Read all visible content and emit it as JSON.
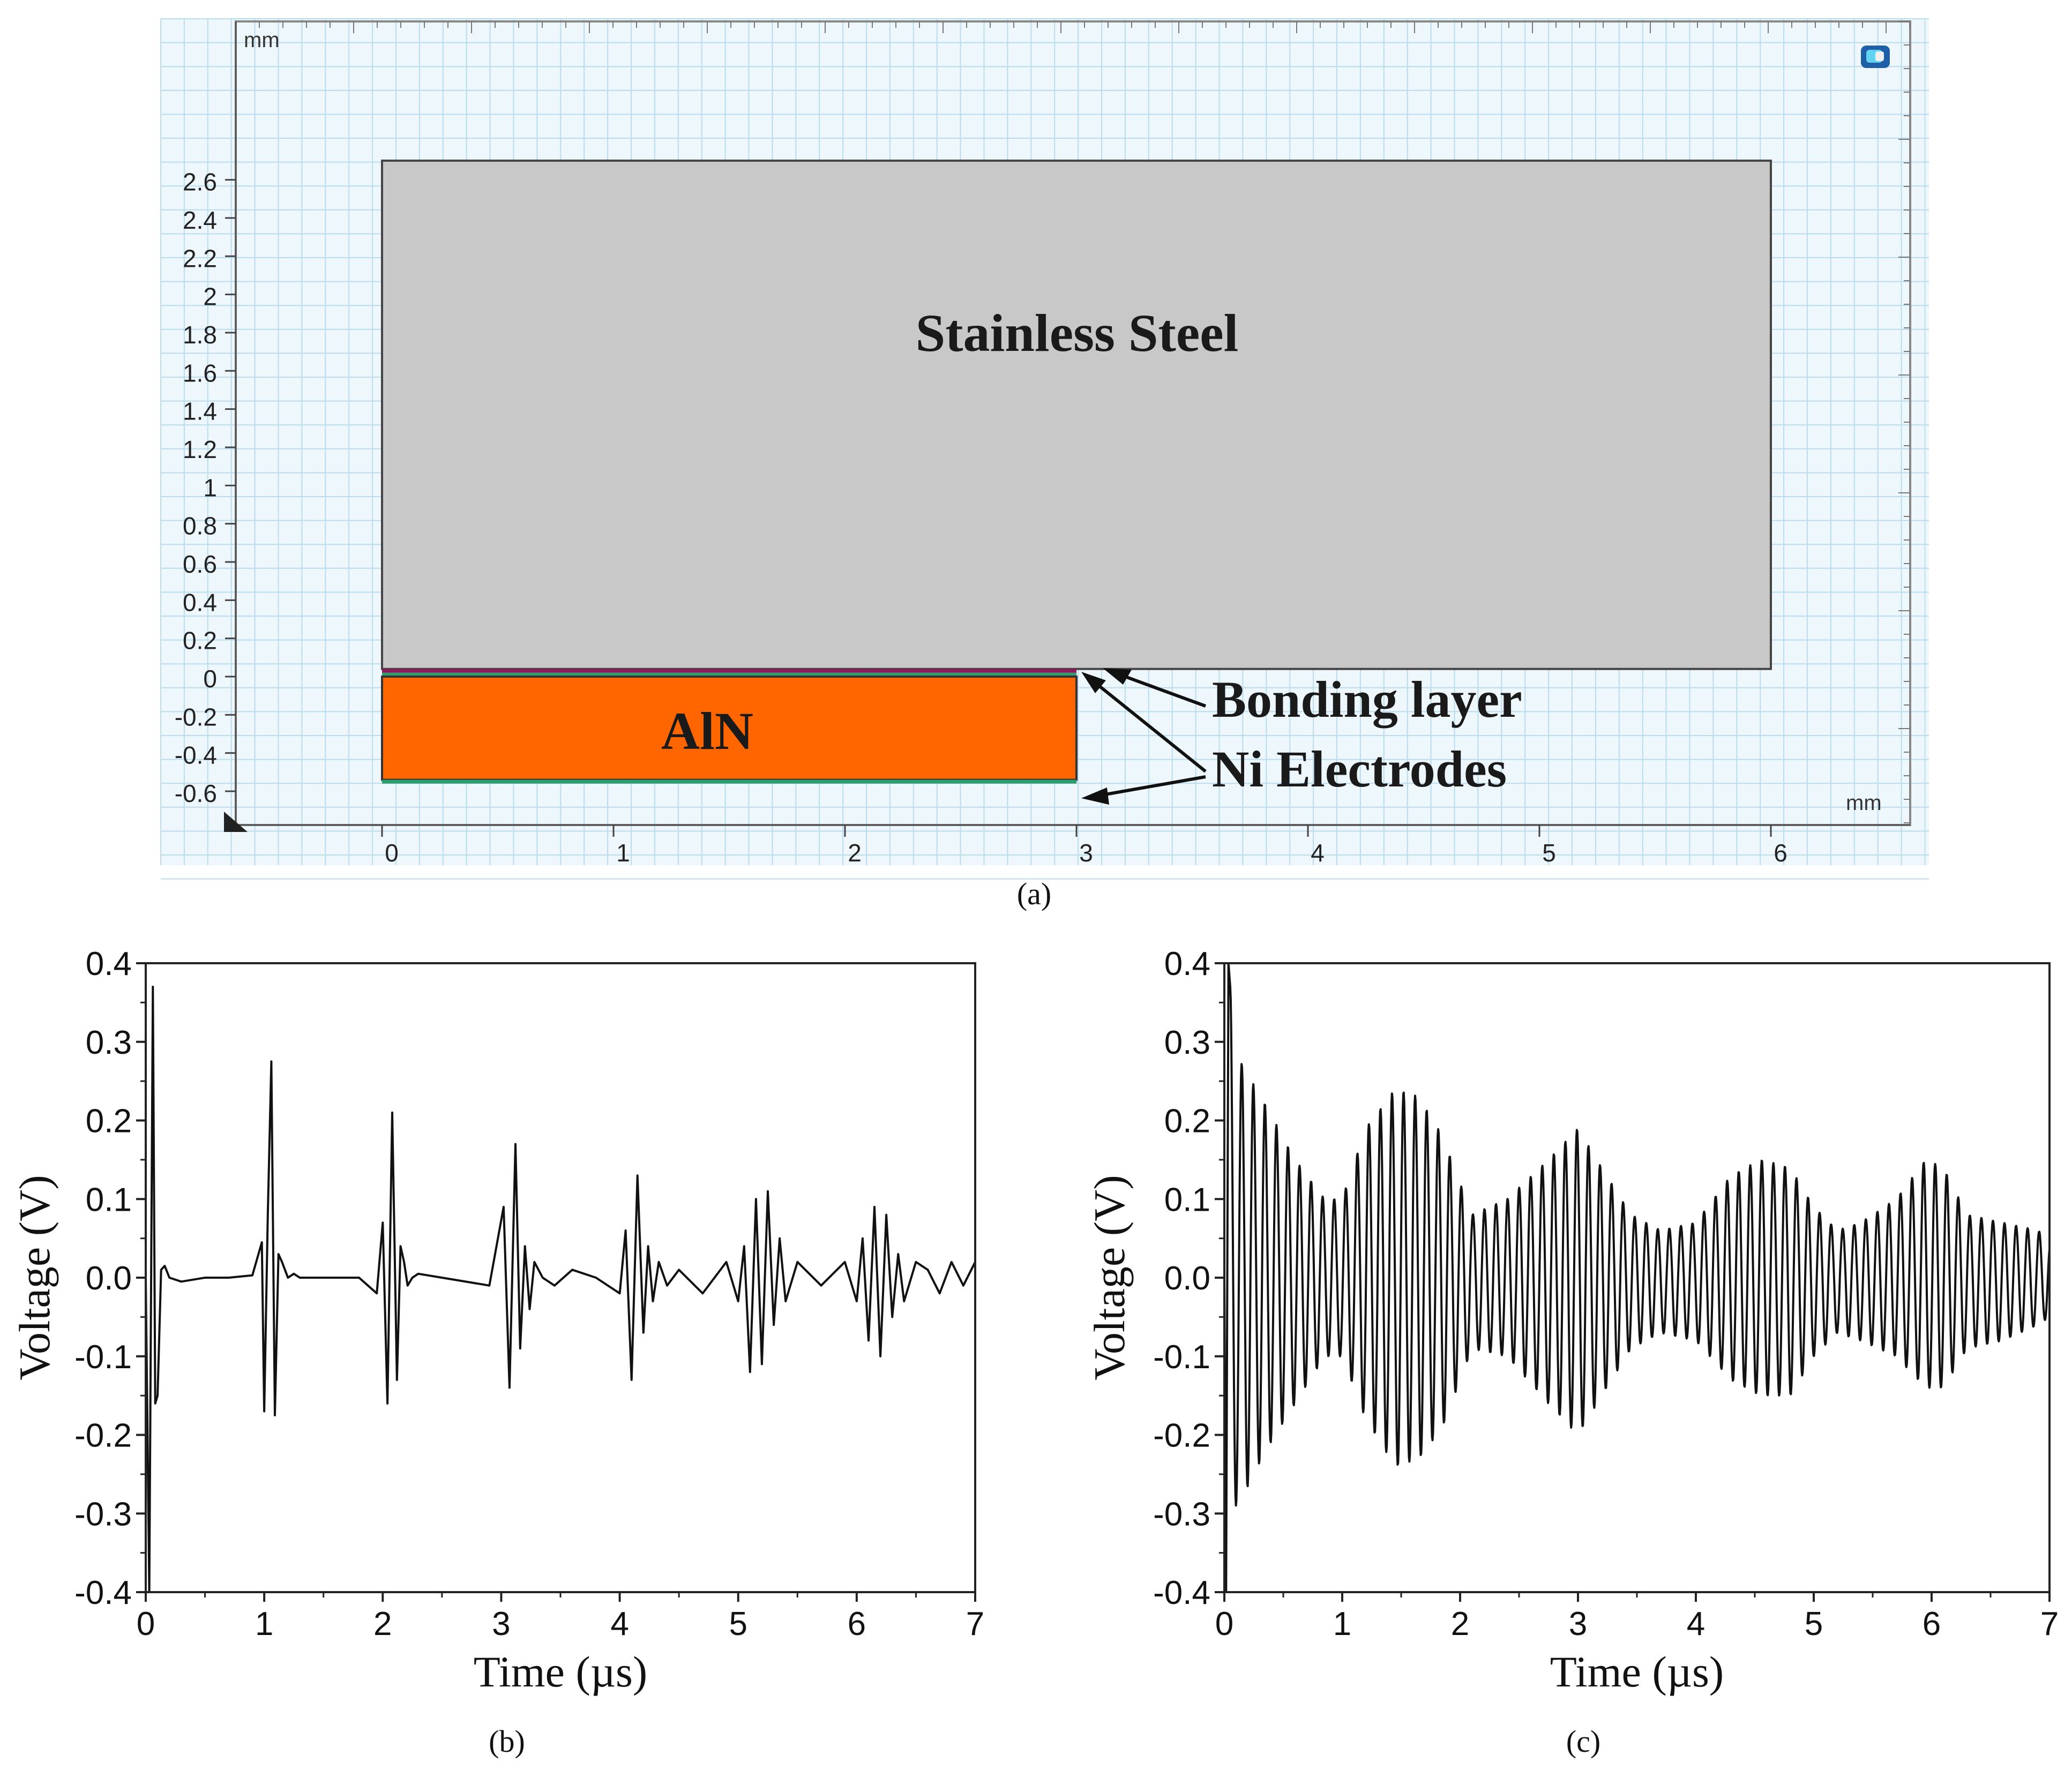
{
  "figure": {
    "panel_a_label": "(a)",
    "panel_b_label": "(b)",
    "panel_c_label": "(c)"
  },
  "panel_a": {
    "unit_top_left": "mm",
    "unit_bottom_right": "mm",
    "y_ticks": [
      "2.6",
      "2.4",
      "2.2",
      "2",
      "1.8",
      "1.6",
      "1.4",
      "1.2",
      "1",
      "0.8",
      "0.6",
      "0.4",
      "0.2",
      "0",
      "-0.2",
      "-0.4",
      "-0.6"
    ],
    "x_ticks": [
      "0",
      "1",
      "2",
      "3",
      "4",
      "5",
      "6"
    ],
    "labels": {
      "steel": "Stainless Steel",
      "aln": "AlN",
      "bonding": "Bonding layer",
      "electrodes": "Ni Electrodes"
    },
    "colors": {
      "steel": "#c8c8c8",
      "aln": "#ff6600",
      "bonding": "#8b1a5c",
      "electrode": "#2e9e6e",
      "grid": "#b9dcee",
      "background": "#eef7fc"
    },
    "geometry_mm": {
      "steel": {
        "x": [
          0,
          6
        ],
        "y": [
          0.04,
          2.7
        ]
      },
      "bonding_layer": {
        "x": [
          0,
          3
        ],
        "y": [
          0.02,
          0.04
        ]
      },
      "top_electrode": {
        "x": [
          0,
          3
        ],
        "y": [
          0.0,
          0.02
        ]
      },
      "aln": {
        "x": [
          0,
          3
        ],
        "y": [
          -0.54,
          0.0
        ]
      },
      "bottom_electrode": {
        "x": [
          0,
          3
        ],
        "y": [
          -0.56,
          -0.54
        ]
      }
    }
  },
  "chart_data": [
    {
      "type": "line",
      "panel": "b",
      "xlabel": "Time (µs)",
      "ylabel": "Voltage (V)",
      "xlim": [
        0,
        7
      ],
      "ylim": [
        -0.4,
        0.4
      ],
      "x_ticks": [
        "0",
        "1",
        "2",
        "3",
        "4",
        "5",
        "6",
        "7"
      ],
      "y_ticks": [
        "0.4",
        "0.3",
        "0.2",
        "0.1",
        "0.0",
        "-0.1",
        "-0.2",
        "-0.3",
        "-0.4"
      ],
      "series": [
        {
          "name": "Voltage",
          "x": [
            0.0,
            0.03,
            0.06,
            0.08,
            0.1,
            0.13,
            0.16,
            0.2,
            0.3,
            0.5,
            0.7,
            0.9,
            0.98,
            1.0,
            1.03,
            1.06,
            1.09,
            1.12,
            1.15,
            1.2,
            1.25,
            1.3,
            1.5,
            1.8,
            1.95,
            2.0,
            2.04,
            2.08,
            2.12,
            2.15,
            2.18,
            2.21,
            2.25,
            2.3,
            2.5,
            2.9,
            3.02,
            3.07,
            3.12,
            3.16,
            3.2,
            3.24,
            3.28,
            3.35,
            3.45,
            3.6,
            3.8,
            4.0,
            4.05,
            4.1,
            4.15,
            4.2,
            4.24,
            4.28,
            4.33,
            4.4,
            4.5,
            4.7,
            4.9,
            5.0,
            5.05,
            5.1,
            5.15,
            5.2,
            5.25,
            5.3,
            5.35,
            5.4,
            5.5,
            5.7,
            5.9,
            6.0,
            6.05,
            6.1,
            6.15,
            6.2,
            6.25,
            6.3,
            6.35,
            6.4,
            6.5,
            6.6,
            6.7,
            6.8,
            6.9,
            7.0
          ],
          "values": [
            0.0,
            -0.4,
            0.37,
            -0.16,
            -0.15,
            0.01,
            0.015,
            0.0,
            -0.005,
            0.0,
            0.0,
            0.003,
            0.045,
            -0.17,
            0.08,
            0.275,
            -0.175,
            0.03,
            0.02,
            0.0,
            0.005,
            0.0,
            0.0,
            0.0,
            -0.02,
            0.07,
            -0.16,
            0.21,
            -0.13,
            0.04,
            0.02,
            -0.01,
            0.0,
            0.005,
            0.0,
            -0.01,
            0.09,
            -0.14,
            0.17,
            -0.09,
            0.04,
            -0.04,
            0.02,
            0.0,
            -0.01,
            0.01,
            0.0,
            -0.02,
            0.06,
            -0.13,
            0.13,
            -0.07,
            0.04,
            -0.03,
            0.02,
            -0.01,
            0.01,
            -0.02,
            0.02,
            -0.03,
            0.04,
            -0.12,
            0.1,
            -0.11,
            0.11,
            -0.06,
            0.05,
            -0.03,
            0.02,
            -0.01,
            0.02,
            -0.03,
            0.05,
            -0.08,
            0.09,
            -0.1,
            0.08,
            -0.05,
            0.03,
            -0.03,
            0.02,
            0.01,
            -0.02,
            0.02,
            -0.01,
            0.02
          ]
        }
      ]
    },
    {
      "type": "line",
      "panel": "c",
      "xlabel": "Time (µs)",
      "ylabel": "Voltage (V)",
      "xlim": [
        0,
        7
      ],
      "ylim": [
        -0.4,
        0.4
      ],
      "x_ticks": [
        "0",
        "1",
        "2",
        "3",
        "4",
        "5",
        "6",
        "7"
      ],
      "y_ticks": [
        "0.4",
        "0.3",
        "0.2",
        "0.1",
        "0.0",
        "-0.1",
        "-0.2",
        "-0.3",
        "-0.4"
      ],
      "series": [
        {
          "name": "Voltage",
          "oscillation_frequency_mhz": 10.2,
          "envelope": {
            "t": [
              0.05,
              0.15,
              0.35,
              0.6,
              0.85,
              1.0,
              1.2,
              1.45,
              1.65,
              1.85,
              1.95,
              2.1,
              2.4,
              2.75,
              3.0,
              3.2,
              3.45,
              3.7,
              4.0,
              4.3,
              4.55,
              4.8,
              5.0,
              5.2,
              5.4,
              5.7,
              5.95,
              6.1,
              6.3,
              6.6,
              6.9,
              7.0
            ],
            "upper": [
              0.37,
              0.27,
              0.22,
              0.15,
              0.1,
              0.1,
              0.19,
              0.24,
              0.23,
              0.18,
              0.14,
              0.08,
              0.1,
              0.15,
              0.19,
              0.14,
              0.08,
              0.06,
              0.07,
              0.13,
              0.15,
              0.14,
              0.09,
              0.06,
              0.07,
              0.1,
              0.15,
              0.14,
              0.08,
              0.07,
              0.06,
              0.05
            ],
            "lower": [
              -0.3,
              -0.28,
              -0.22,
              -0.16,
              -0.1,
              -0.1,
              -0.18,
              -0.24,
              -0.23,
              -0.19,
              -0.15,
              -0.09,
              -0.1,
              -0.16,
              -0.2,
              -0.15,
              -0.09,
              -0.07,
              -0.08,
              -0.13,
              -0.15,
              -0.15,
              -0.1,
              -0.07,
              -0.08,
              -0.1,
              -0.14,
              -0.14,
              -0.09,
              -0.08,
              -0.06,
              -0.05
            ]
          }
        }
      ]
    }
  ]
}
